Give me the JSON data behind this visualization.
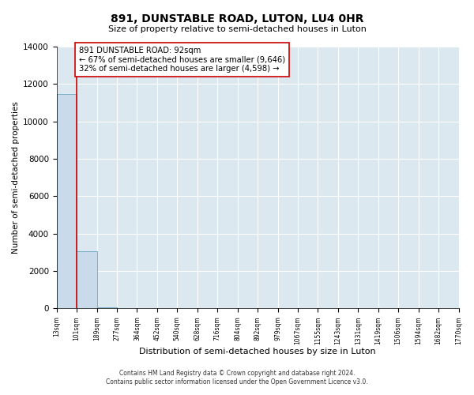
{
  "title": "891, DUNSTABLE ROAD, LUTON, LU4 0HR",
  "subtitle": "Size of property relative to semi-detached houses in Luton",
  "xlabel": "Distribution of semi-detached houses by size in Luton",
  "ylabel": "Number of semi-detached properties",
  "bar_labels": [
    "13sqm",
    "101sqm",
    "189sqm",
    "277sqm",
    "364sqm",
    "452sqm",
    "540sqm",
    "628sqm",
    "716sqm",
    "804sqm",
    "892sqm",
    "979sqm",
    "1067sqm",
    "1155sqm",
    "1243sqm",
    "1331sqm",
    "1419sqm",
    "1506sqm",
    "1594sqm",
    "1682sqm",
    "1770sqm"
  ],
  "bar_color": "#c9daea",
  "bar_edge_color": "#7aaec8",
  "ylim": [
    0,
    14000
  ],
  "yticks": [
    0,
    2000,
    4000,
    6000,
    8000,
    10000,
    12000,
    14000
  ],
  "property_line_color": "#cc0000",
  "annotation_title": "891 DUNSTABLE ROAD: 92sqm",
  "annotation_line1": "← 67% of semi-detached houses are smaller (9,646)",
  "annotation_line2": "32% of semi-detached houses are larger (4,598) →",
  "annotation_box_color": "#ffffff",
  "annotation_box_edge": "#cc0000",
  "footer1": "Contains HM Land Registry data © Crown copyright and database right 2024.",
  "footer2": "Contains public sector information licensed under the Open Government Licence v3.0.",
  "bg_color": "#ffffff",
  "plot_bg_color": "#dce8f0",
  "grid_color": "#ffffff",
  "num_bars": 20,
  "bar_data": [
    11450,
    3050,
    80,
    0,
    0,
    0,
    0,
    0,
    0,
    0,
    0,
    0,
    0,
    0,
    0,
    0,
    0,
    0,
    0,
    0
  ]
}
